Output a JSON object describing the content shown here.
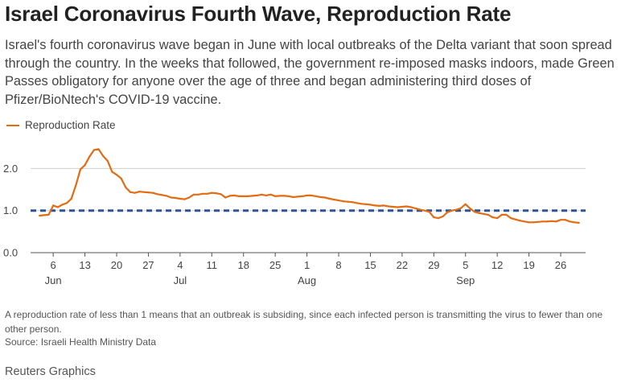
{
  "header": {
    "title": "Israel Coronavirus Fourth Wave, Reproduction Rate",
    "subtitle": "Israel's fourth coronavirus wave began in June with local outbreaks of the Delta variant that soon spread through the country. In the weeks that followed, the government re-imposed masks indoors, made Green Passes obligatory for anyone over the age of three and began administering third doses of Pfizer/BioNtech's COVID-19 vaccine."
  },
  "legend": {
    "label": "Reproduction Rate"
  },
  "colors": {
    "line": "#e36c12",
    "reference": "#2f5597",
    "grid": "#cfcfcf",
    "axis": "#555555"
  },
  "chart_data": {
    "type": "line",
    "title": "Israel Coronavirus Fourth Wave, Reproduction Rate",
    "xlabel": "",
    "ylabel": "",
    "ylim": [
      0,
      2.6
    ],
    "y_ticks": [
      0.0,
      1.0,
      2.0
    ],
    "y_tick_labels": [
      "0.0",
      "1.0",
      "2.0"
    ],
    "x_start": "2021-06-01",
    "x_range_days": [
      0,
      122.5
    ],
    "x_ticks": [
      {
        "day": 5,
        "label": "6"
      },
      {
        "day": 12,
        "label": "13"
      },
      {
        "day": 19,
        "label": "20"
      },
      {
        "day": 26,
        "label": "27"
      },
      {
        "day": 33,
        "label": "4"
      },
      {
        "day": 40,
        "label": "11"
      },
      {
        "day": 47,
        "label": "18"
      },
      {
        "day": 54,
        "label": "25"
      },
      {
        "day": 61,
        "label": "1"
      },
      {
        "day": 68,
        "label": "8"
      },
      {
        "day": 75,
        "label": "15"
      },
      {
        "day": 82,
        "label": "22"
      },
      {
        "day": 89,
        "label": "29"
      },
      {
        "day": 96,
        "label": "5"
      },
      {
        "day": 103,
        "label": "12"
      },
      {
        "day": 110,
        "label": "19"
      },
      {
        "day": 117,
        "label": "26"
      }
    ],
    "month_labels": [
      {
        "day": 5,
        "label": "Jun"
      },
      {
        "day": 33,
        "label": "Jul"
      },
      {
        "day": 61,
        "label": "Aug"
      },
      {
        "day": 96,
        "label": "Sep"
      }
    ],
    "reference_line": {
      "y": 1.0,
      "style": "dashed"
    },
    "series": [
      {
        "name": "Reproduction Rate",
        "x": [
          2,
          3,
          4,
          5,
          6,
          7,
          8,
          9,
          10,
          11,
          12,
          13,
          14,
          15,
          16,
          17,
          18,
          19,
          20,
          21,
          22,
          23,
          24,
          25,
          26,
          27,
          28,
          29,
          30,
          31,
          32,
          33,
          34,
          35,
          36,
          37,
          38,
          39,
          40,
          41,
          42,
          43,
          44,
          45,
          46,
          47,
          48,
          49,
          50,
          51,
          52,
          53,
          54,
          55,
          56,
          57,
          58,
          59,
          60,
          61,
          62,
          63,
          64,
          65,
          66,
          67,
          68,
          69,
          70,
          71,
          72,
          73,
          74,
          75,
          76,
          77,
          78,
          79,
          80,
          81,
          82,
          83,
          84,
          85,
          86,
          87,
          88,
          89,
          90,
          91,
          92,
          93,
          94,
          95,
          96,
          97,
          98,
          99,
          100,
          101,
          102,
          103,
          104,
          105,
          106,
          107,
          108,
          109,
          110,
          111,
          112,
          113,
          114,
          115,
          116,
          117,
          118,
          119,
          120,
          121
        ],
        "values": [
          0.88,
          0.89,
          0.9,
          1.12,
          1.08,
          1.14,
          1.18,
          1.28,
          1.6,
          1.98,
          2.08,
          2.28,
          2.44,
          2.46,
          2.3,
          2.18,
          1.92,
          1.85,
          1.76,
          1.55,
          1.44,
          1.42,
          1.45,
          1.44,
          1.43,
          1.42,
          1.39,
          1.37,
          1.35,
          1.31,
          1.3,
          1.28,
          1.27,
          1.31,
          1.38,
          1.38,
          1.4,
          1.4,
          1.42,
          1.41,
          1.39,
          1.31,
          1.35,
          1.36,
          1.34,
          1.34,
          1.34,
          1.35,
          1.36,
          1.38,
          1.36,
          1.38,
          1.34,
          1.35,
          1.35,
          1.34,
          1.32,
          1.33,
          1.34,
          1.36,
          1.36,
          1.34,
          1.32,
          1.31,
          1.28,
          1.26,
          1.24,
          1.22,
          1.21,
          1.2,
          1.18,
          1.16,
          1.15,
          1.14,
          1.12,
          1.11,
          1.12,
          1.1,
          1.09,
          1.08,
          1.09,
          1.1,
          1.08,
          1.05,
          1.02,
          1.0,
          0.97,
          0.84,
          0.82,
          0.86,
          0.96,
          1.0,
          1.02,
          1.06,
          1.15,
          1.05,
          0.97,
          0.94,
          0.92,
          0.9,
          0.84,
          0.82,
          0.9,
          0.9,
          0.82,
          0.79,
          0.76,
          0.74,
          0.72,
          0.72,
          0.73,
          0.74,
          0.74,
          0.75,
          0.74,
          0.78,
          0.78,
          0.74,
          0.72,
          0.71
        ]
      }
    ]
  },
  "footer": {
    "note": "A reproduction rate of less than 1 means that an outbreak is subsiding, since each infected person is transmitting the virus to fewer than one other person.",
    "source": "Source: Israeli Health Ministry Data",
    "brand": "Reuters Graphics"
  }
}
